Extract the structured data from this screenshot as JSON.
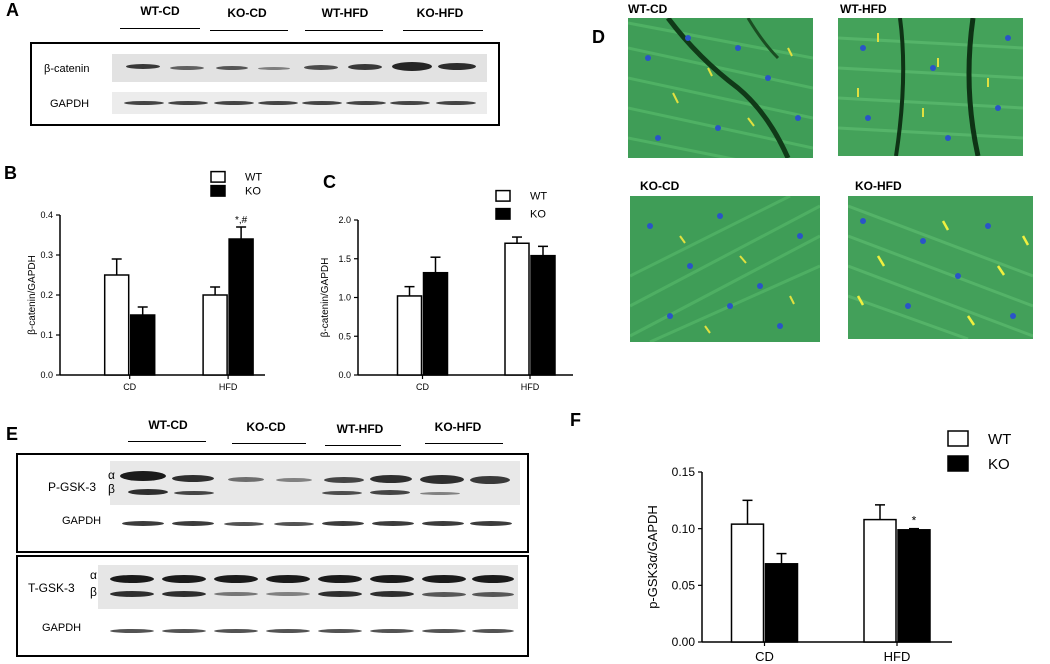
{
  "panels": {
    "A": {
      "letter": "A",
      "lanes": [
        "WT-CD",
        "KO-CD",
        "WT-HFD",
        "KO-HFD"
      ],
      "rows": [
        "β-catenin",
        "GAPDH"
      ]
    },
    "B": {
      "letter": "B",
      "legend": [
        "WT",
        "KO"
      ],
      "annotation": "*,#"
    },
    "C": {
      "letter": "C",
      "legend": [
        "WT",
        "KO"
      ]
    },
    "D": {
      "letter": "D",
      "images": [
        "WT-CD",
        "WT-HFD",
        "KO-CD",
        "KO-HFD"
      ]
    },
    "E": {
      "letter": "E",
      "lanes": [
        "WT-CD",
        "KO-CD",
        "WT-HFD",
        "KO-HFD"
      ],
      "rows_top": [
        "P-GSK-3",
        "GAPDH"
      ],
      "rows_bottom": [
        "T-GSK-3",
        "GAPDH"
      ],
      "alpha": "α",
      "beta": "β"
    },
    "F": {
      "letter": "F",
      "legend": [
        "WT",
        "KO"
      ],
      "annotation": "*"
    }
  },
  "chart_data": [
    {
      "id": "B",
      "type": "bar",
      "categories": [
        "CD",
        "HFD"
      ],
      "series": [
        {
          "name": "WT",
          "values": [
            0.25,
            0.2
          ],
          "errors": [
            0.04,
            0.02
          ],
          "color": "#ffffff"
        },
        {
          "name": "KO",
          "values": [
            0.15,
            0.34
          ],
          "errors": [
            0.02,
            0.03
          ],
          "color": "#000000"
        }
      ],
      "ylabel": "β-catenin/GAPDH",
      "ylim": [
        0,
        0.4
      ],
      "yticks": [
        "0.0",
        "0.1",
        "0.2",
        "0.3",
        "0.4"
      ],
      "yticks_values": [
        0,
        0.1,
        0.2,
        0.3,
        0.4
      ],
      "legend_position": "top-right"
    },
    {
      "id": "C",
      "type": "bar",
      "categories": [
        "CD",
        "HFD"
      ],
      "series": [
        {
          "name": "WT",
          "values": [
            1.02,
            1.7
          ],
          "errors": [
            0.12,
            0.08
          ],
          "color": "#ffffff"
        },
        {
          "name": "KO",
          "values": [
            1.32,
            1.54
          ],
          "errors": [
            0.2,
            0.12
          ],
          "color": "#000000"
        }
      ],
      "ylabel": "β-catenin/GAPDH",
      "ylim": [
        0,
        2.0
      ],
      "yticks": [
        "0.0",
        "0.5",
        "1.0",
        "1.5",
        "2.0"
      ],
      "yticks_values": [
        0,
        0.5,
        1.0,
        1.5,
        2.0
      ],
      "legend_position": "top-right"
    },
    {
      "id": "F",
      "type": "bar",
      "categories": [
        "CD",
        "HFD"
      ],
      "series": [
        {
          "name": "WT",
          "values": [
            0.104,
            0.108
          ],
          "errors": [
            0.021,
            0.013
          ],
          "color": "#ffffff"
        },
        {
          "name": "KO",
          "values": [
            0.069,
            0.099
          ],
          "errors": [
            0.009,
            0.001
          ],
          "color": "#000000"
        }
      ],
      "ylabel": "p-GSK3α/GAPDH",
      "ylim": [
        0,
        0.15
      ],
      "yticks": [
        "0.00",
        "0.05",
        "0.10",
        "0.15"
      ],
      "yticks_values": [
        0,
        0.05,
        0.1,
        0.15
      ],
      "legend_position": "top-right"
    }
  ]
}
